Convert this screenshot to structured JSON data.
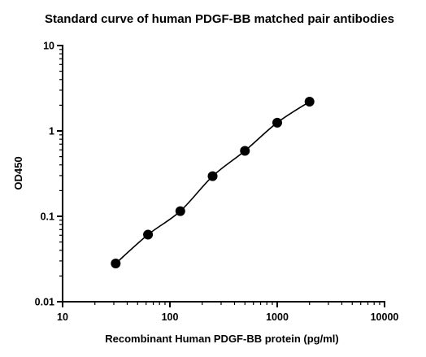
{
  "chart_data": {
    "type": "scatter",
    "title": "Standard curve of human PDGF-BB matched pair antibodies",
    "xlabel": "Recombinant Human PDGF-BB protein (pg/ml)",
    "ylabel": "OD450",
    "x_scale": "log",
    "y_scale": "log",
    "xlim": [
      10,
      10000
    ],
    "ylim": [
      0.01,
      10
    ],
    "x_ticks": [
      "10",
      "100",
      "1000",
      "10000"
    ],
    "y_ticks": [
      "0.01",
      "0.1",
      "1",
      "10"
    ],
    "grid": false,
    "legend": "none",
    "fit_line": true,
    "series": [
      {
        "x": [
          31.25,
          62.5,
          125,
          250,
          500,
          1000,
          2000
        ],
        "y": [
          0.028,
          0.061,
          0.115,
          0.295,
          0.585,
          1.25,
          2.2
        ]
      }
    ],
    "colors": {
      "points": "#000000",
      "line": "#000000"
    }
  }
}
